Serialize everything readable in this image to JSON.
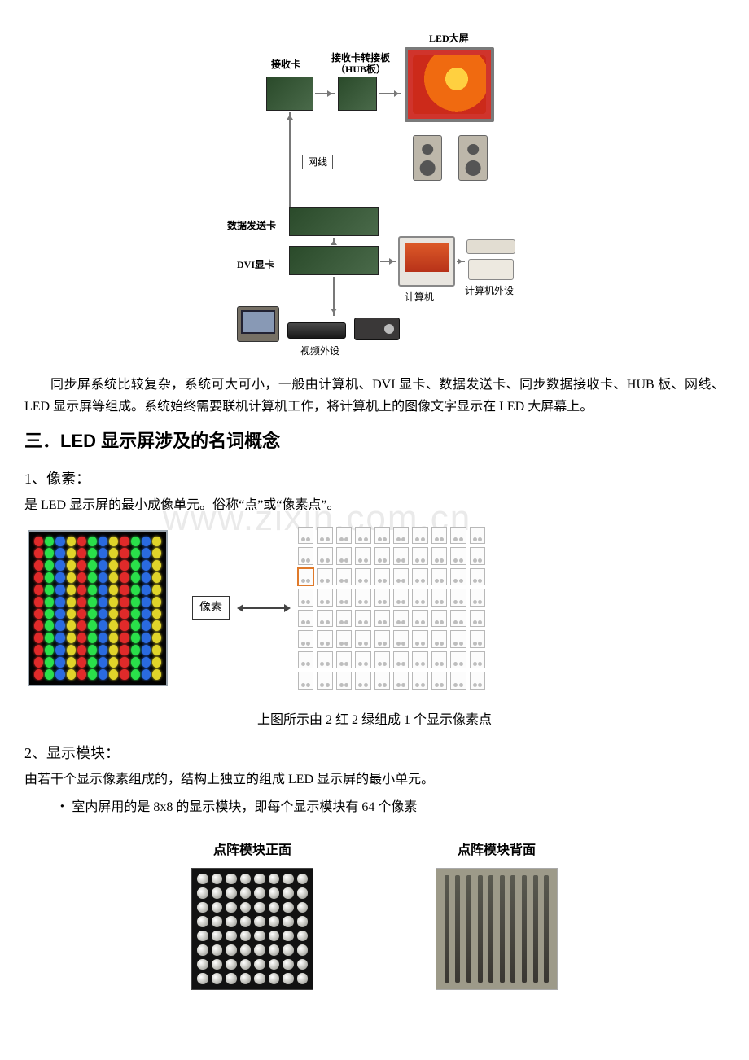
{
  "watermark": "www.zixin.com.cn",
  "diagram": {
    "led_screen": "LED大屏",
    "recv_card": "接收卡",
    "hub_board_l1": "接收卡转接板",
    "hub_board_l2": "（HUB板）",
    "cable": "网线",
    "send_card": "数据发送卡",
    "dvi_card": "DVI显卡",
    "computer": "计算机",
    "peripherals": "计算机外设",
    "video_periph": "视频外设"
  },
  "para1": "同步屏系统比较复杂，系统可大可小，一般由计算机、DVI 显卡、数据发送卡、同步数据接收卡、HUB 板、网线、LED 显示屏等组成。系统始终需要联机计算机工作，将计算机上的图像文字显示在 LED 大屏幕上。",
  "h2": "三．LED 显示屏涉及的名词概念",
  "sub1": "1、像素：",
  "sub1_body": "是 LED 显示屏的最小成像单元。俗称“点”或“像素点”。",
  "pix_label": "像素",
  "caption": "上图所示由 2 红 2 绿组成 1 个显示像素点",
  "sub2": "2、显示模块：",
  "sub2_body": "由若干个显示像素组成的，结构上独立的组成 LED 显示屏的最小单元。",
  "sub2_bullet": "・ 室内屏用的是 8x8 的显示模块，即每个显示模块有 64 个像素",
  "matrix_front": "点阵模块正面",
  "matrix_back": "点阵模块背面",
  "colors": {
    "led_seq": [
      "#e02a2a",
      "#2ae04a",
      "#2a6ae0",
      "#e0d42a"
    ],
    "accent": "#e07a2a"
  }
}
